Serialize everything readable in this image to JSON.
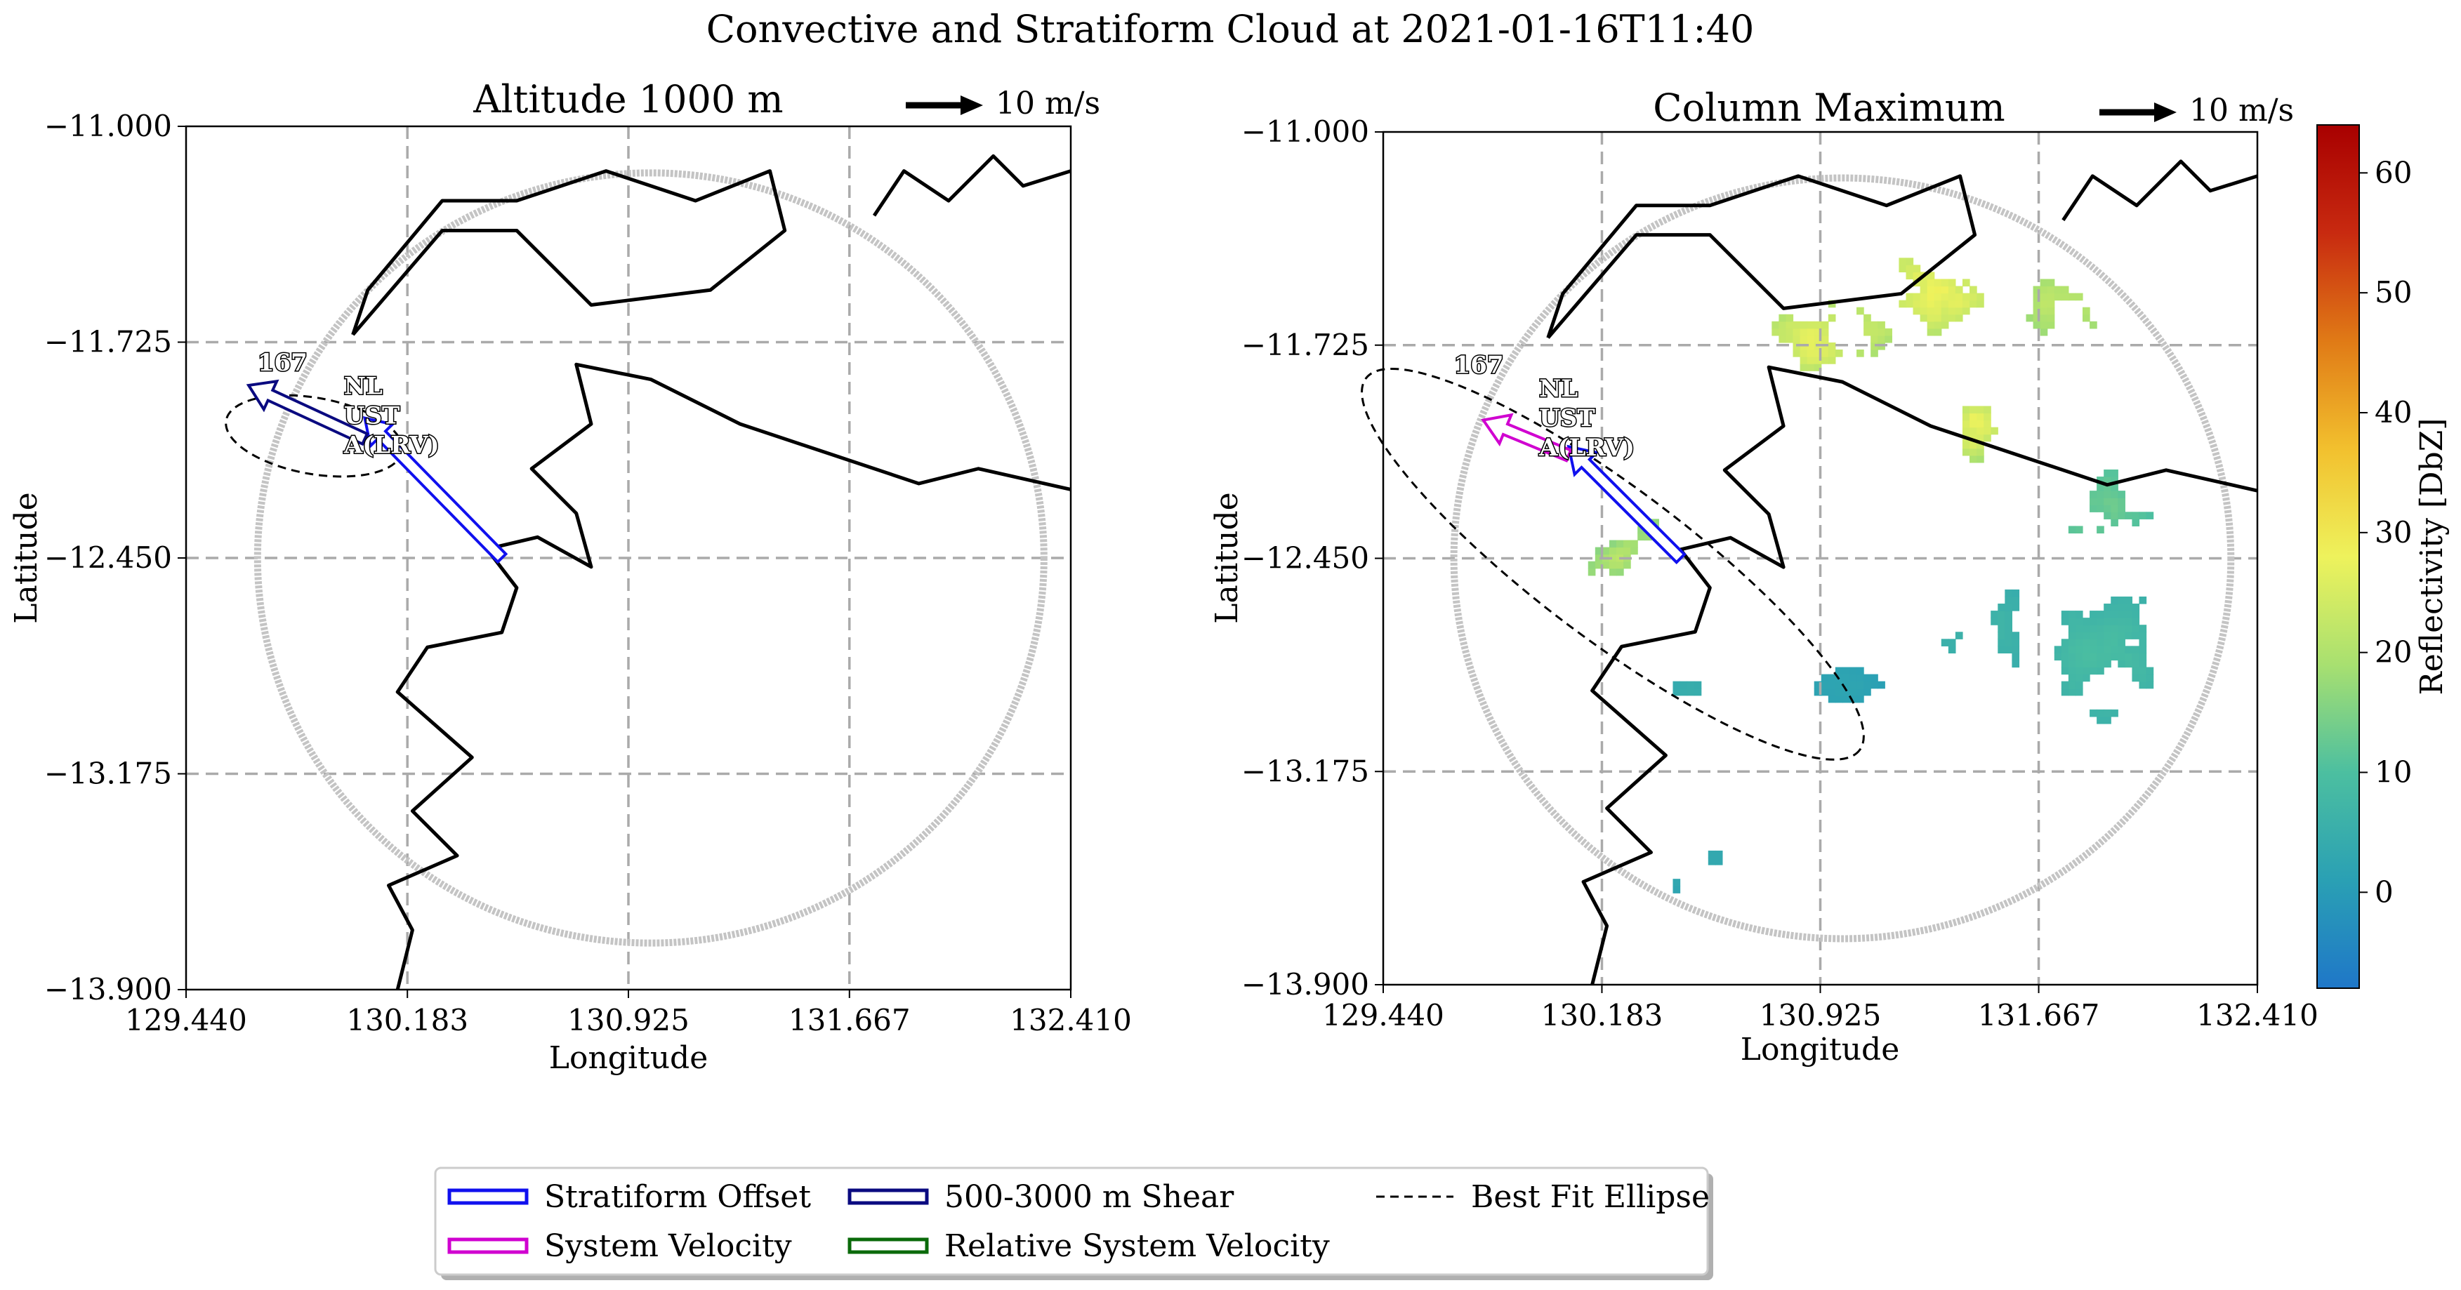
{
  "chart_data": {
    "title": "Convective and Stratiform Cloud at 2021-01-16T11:40",
    "type": "heatmap",
    "x_ticks": [
      "129.440",
      "130.183",
      "130.925",
      "131.667",
      "132.410"
    ],
    "y_ticks": [
      "−11.000",
      "−11.725",
      "−12.450",
      "−13.175",
      "−13.900"
    ],
    "xlim": [
      129.44,
      132.41
    ],
    "ylim": [
      -13.9,
      -11.0
    ],
    "xlabel": "Longitude",
    "ylabel": "Latitude",
    "vector_scale_label": "10 m/s",
    "colorbar": {
      "label": "Reflectivity [DbZ]",
      "ticks": [
        "0",
        "10",
        "20",
        "30",
        "40",
        "50",
        "60"
      ],
      "range": [
        -8,
        64
      ],
      "colors": [
        "#1f77c8",
        "#2aa0b4",
        "#4cbfa0",
        "#a8e070",
        "#eef25c",
        "#f2c02e",
        "#e07a16",
        "#c82a10",
        "#a80000"
      ]
    },
    "cell_label": "167",
    "cell_flags": [
      "NL",
      "UST",
      "A(LRV)"
    ],
    "panels": [
      {
        "title": "Altitude 1000 m",
        "ellipse": {
          "center": [
            129.87,
            -12.04
          ],
          "semi_major": 0.3,
          "semi_minor": 0.08,
          "angle_deg": -10
        },
        "vectors": [
          {
            "kind": "stratiform_offset",
            "from": [
              130.5,
              -12.45
            ],
            "to": [
              130.04,
              -11.98
            ]
          },
          {
            "kind": "shear",
            "from": [
              130.04,
              -12.05
            ],
            "to": [
              129.65,
              -11.87
            ]
          }
        ]
      },
      {
        "title": "Column Maximum",
        "ellipse": {
          "center": [
            130.22,
            -12.47
          ],
          "semi_major": 1.05,
          "semi_minor": 0.16,
          "angle_deg": -37
        },
        "vectors": [
          {
            "kind": "stratiform_offset",
            "from": [
              130.45,
              -12.45
            ],
            "to": [
              130.07,
              -12.07
            ]
          },
          {
            "kind": "system_velocity",
            "from": [
              130.07,
              -12.1
            ],
            "to": [
              129.78,
              -11.98
            ]
          }
        ]
      }
    ],
    "legend": [
      {
        "label": "Stratiform Offset",
        "color": "#1010ee",
        "style": "double"
      },
      {
        "label": "500-3000 m Shear",
        "color": "#0a0a80",
        "style": "double"
      },
      {
        "label": "Best Fit Ellipse",
        "color": "#000000",
        "style": "dashed"
      },
      {
        "label": "System Velocity",
        "color": "#d000d0",
        "style": "double"
      },
      {
        "label": "Relative System Velocity",
        "color": "#0a6a0a",
        "style": "double"
      }
    ],
    "grid": true,
    "legend_position": "bottom-center"
  }
}
